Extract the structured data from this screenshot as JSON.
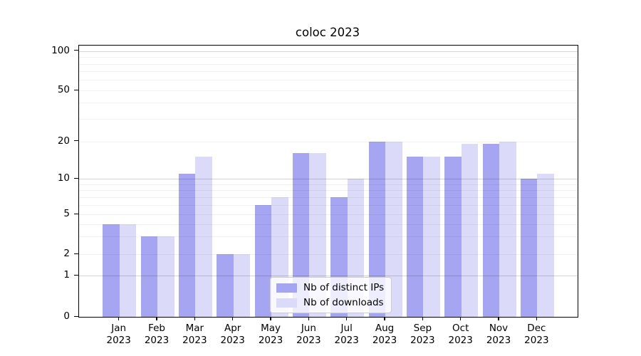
{
  "chart_data": {
    "type": "bar",
    "title": "coloc 2023",
    "categories": [
      {
        "month": "Jan",
        "year": "2023"
      },
      {
        "month": "Feb",
        "year": "2023"
      },
      {
        "month": "Mar",
        "year": "2023"
      },
      {
        "month": "Apr",
        "year": "2023"
      },
      {
        "month": "May",
        "year": "2023"
      },
      {
        "month": "Jun",
        "year": "2023"
      },
      {
        "month": "Jul",
        "year": "2023"
      },
      {
        "month": "Aug",
        "year": "2023"
      },
      {
        "month": "Sep",
        "year": "2023"
      },
      {
        "month": "Oct",
        "year": "2023"
      },
      {
        "month": "Nov",
        "year": "2023"
      },
      {
        "month": "Dec",
        "year": "2023"
      }
    ],
    "series": [
      {
        "name": "Nb of distinct IPs",
        "color": "#a5a5f2",
        "values": [
          4,
          3,
          11,
          2,
          6,
          16,
          7,
          20,
          15,
          15,
          19,
          10
        ]
      },
      {
        "name": "Nb of downloads",
        "color": "#dbdbf9",
        "values": [
          4,
          3,
          15,
          2,
          7,
          16,
          10,
          20,
          15,
          19,
          20,
          11
        ]
      }
    ],
    "xlabel": "",
    "ylabel": "",
    "yscale": "log-like (symlog, 0 shown on axis)",
    "ylim": [
      0,
      110
    ],
    "y_ticks": [
      {
        "value": 0,
        "label": "0"
      },
      {
        "value": 1,
        "label": "1"
      },
      {
        "value": 2,
        "label": "2"
      },
      {
        "value": 5,
        "label": "5"
      },
      {
        "value": 10,
        "label": "10"
      },
      {
        "value": 20,
        "label": "20"
      },
      {
        "value": 50,
        "label": "50"
      },
      {
        "value": 100,
        "label": "100"
      }
    ],
    "y_major_gridlines": [
      1,
      10,
      100
    ],
    "y_minor_gridlines": [
      2,
      3,
      4,
      5,
      6,
      7,
      8,
      9,
      20,
      30,
      40,
      50,
      60,
      70,
      80,
      90
    ],
    "grid": "horizontal gridlines drawn above bars",
    "legend_position": "lower center"
  }
}
